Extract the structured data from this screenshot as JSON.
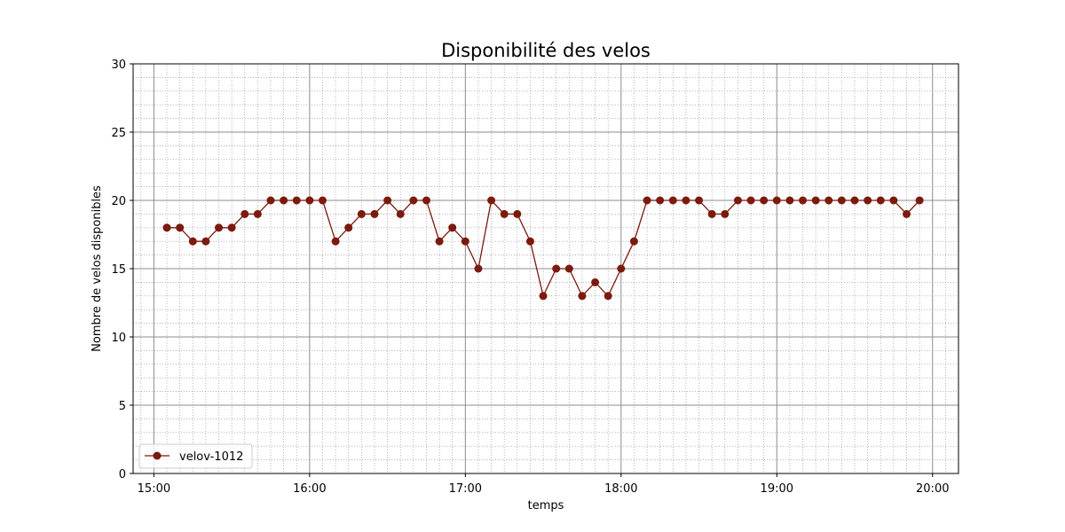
{
  "chart_data": {
    "type": "line",
    "title": "Disponibilité des velos",
    "xlabel": "temps",
    "ylabel": "Nombre de velos disponibles",
    "xlim": [
      "14:52",
      "20:10"
    ],
    "ylim": [
      0,
      30
    ],
    "xticks": [
      "15:00",
      "16:00",
      "17:00",
      "18:00",
      "19:00",
      "20:00"
    ],
    "yticks": [
      0,
      5,
      10,
      15,
      20,
      25,
      30
    ],
    "grid": "major and minor",
    "legend": "lower-left",
    "series": [
      {
        "name": "velov-1012",
        "color": "#7b1a0e",
        "marker": "circle",
        "x": [
          "15:05",
          "15:10",
          "15:15",
          "15:20",
          "15:25",
          "15:30",
          "15:35",
          "15:40",
          "15:45",
          "15:50",
          "15:55",
          "16:00",
          "16:05",
          "16:10",
          "16:15",
          "16:20",
          "16:25",
          "16:30",
          "16:35",
          "16:40",
          "16:45",
          "16:50",
          "16:55",
          "17:00",
          "17:05",
          "17:10",
          "17:15",
          "17:20",
          "17:25",
          "17:30",
          "17:35",
          "17:40",
          "17:45",
          "17:50",
          "17:55",
          "18:00",
          "18:05",
          "18:10",
          "18:15",
          "18:20",
          "18:25",
          "18:30",
          "18:35",
          "18:40",
          "18:45",
          "18:50",
          "18:55",
          "19:00",
          "19:05",
          "19:10",
          "19:15",
          "19:20",
          "19:25",
          "19:30",
          "19:35",
          "19:40",
          "19:45",
          "19:50",
          "19:55"
        ],
        "y": [
          18,
          18,
          17,
          17,
          18,
          18,
          19,
          19,
          20,
          20,
          20,
          20,
          20,
          17,
          18,
          19,
          19,
          20,
          19,
          20,
          20,
          17,
          18,
          17,
          15,
          20,
          19,
          19,
          17,
          13,
          15,
          15,
          13,
          14,
          13,
          15,
          17,
          20,
          20,
          20,
          20,
          20,
          19,
          19,
          20,
          20,
          20,
          20,
          20,
          20,
          20,
          20,
          20,
          20,
          20,
          20,
          20,
          19,
          20
        ]
      }
    ]
  }
}
